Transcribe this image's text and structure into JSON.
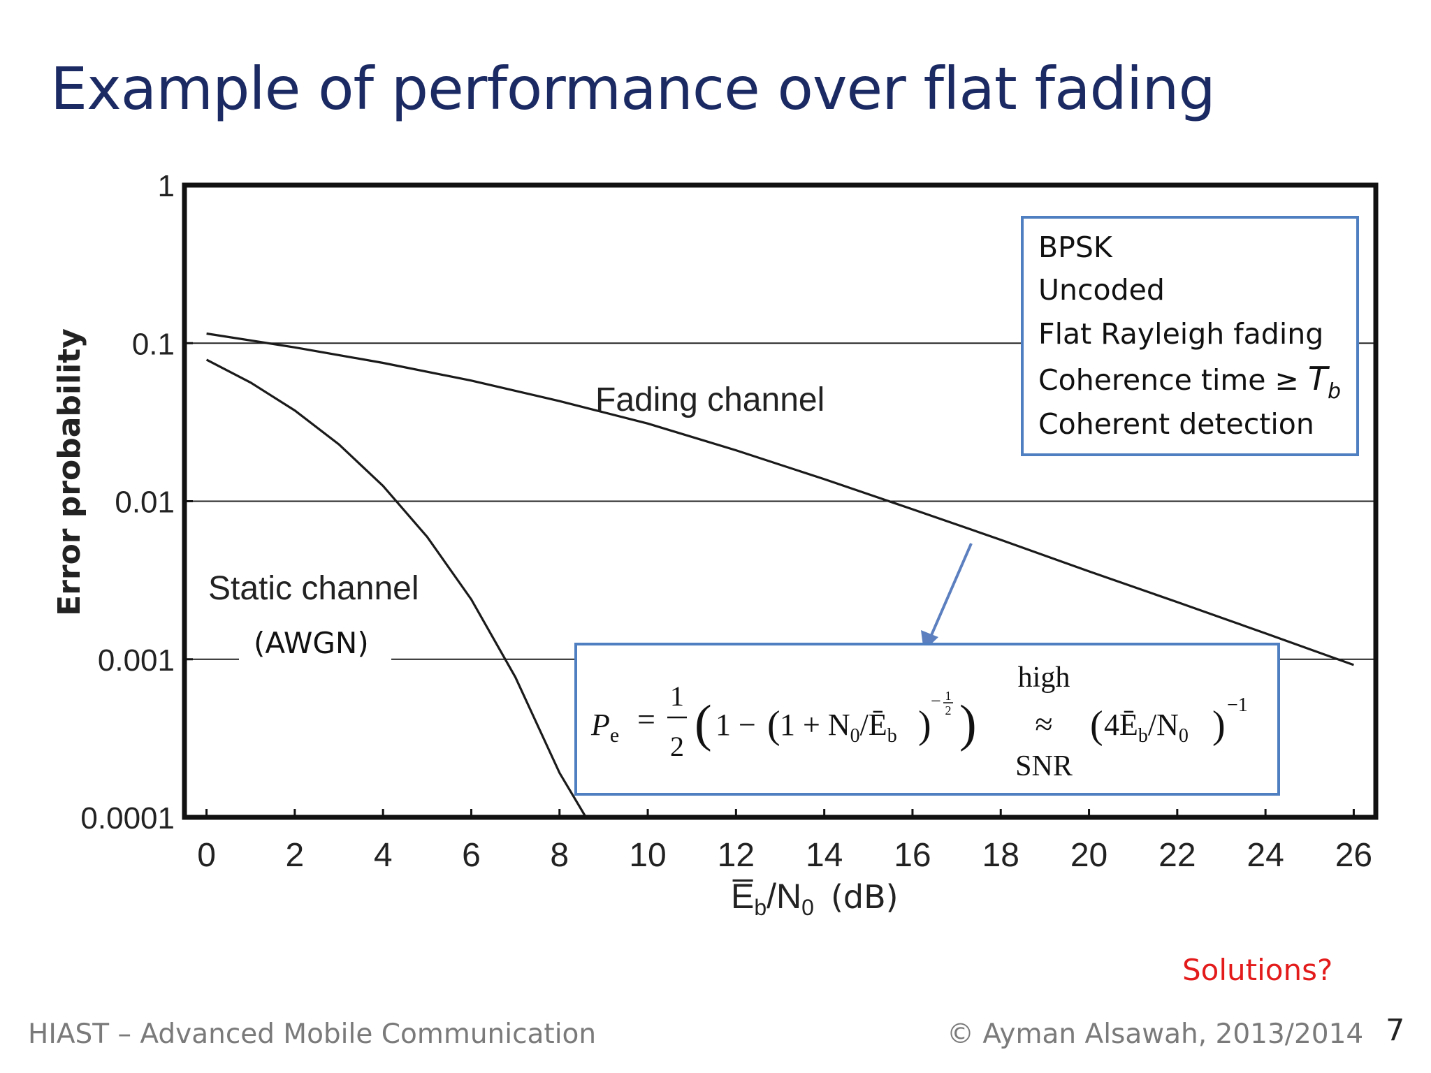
{
  "slide": {
    "title": "Example of performance over flat fading",
    "solutions_note": "Solutions?",
    "footer_left": "HIAST  – Advanced Mobile Communication",
    "footer_right": "© Ayman Alsawah, 2013/2014",
    "page_number": "7"
  },
  "chart_data": {
    "type": "line",
    "title": "",
    "xlabel": "E̅b/N0 (dB)",
    "xlabel_main": "E̅",
    "xlabel_sub1": "b",
    "xlabel_mid": "/N",
    "xlabel_sub2": "0",
    "xlabel_unit": "(dB)",
    "ylabel": "Error probability",
    "y_scale": "log",
    "xlim": [
      -0.5,
      26.5
    ],
    "ylim": [
      0.0001,
      1
    ],
    "x_ticks": [
      0,
      2,
      4,
      6,
      8,
      10,
      12,
      14,
      16,
      18,
      20,
      22,
      24,
      26
    ],
    "x_tick_labels": [
      "0",
      "2",
      "4",
      "6",
      "8",
      "10",
      "12",
      "14",
      "16",
      "18",
      "20",
      "22",
      "24",
      "26"
    ],
    "y_ticks": [
      0.0001,
      0.001,
      0.01,
      0.1,
      1
    ],
    "y_tick_labels": [
      "0.0001",
      "0.001",
      "0.01",
      "0.1",
      "1"
    ],
    "grid": "horizontal lines at 0.001, 0.01, 0.1",
    "series": [
      {
        "label": "Fading channel",
        "x": [
          0,
          2,
          4,
          6,
          8,
          10,
          12,
          14,
          16,
          18,
          20,
          22,
          24,
          26
        ],
        "y": [
          0.115,
          0.094,
          0.075,
          0.058,
          0.043,
          0.031,
          0.021,
          0.0138,
          0.0089,
          0.0057,
          0.0036,
          0.0023,
          0.00146,
          0.00092
        ]
      },
      {
        "label": "Static channel",
        "label_extra": "(AWGN)",
        "x": [
          0,
          1,
          2,
          3,
          4,
          5,
          6,
          7,
          8,
          8.6
        ],
        "y": [
          0.0786,
          0.0563,
          0.0375,
          0.0229,
          0.0125,
          0.00595,
          0.00239,
          0.00077,
          0.000191,
          0.0001
        ]
      }
    ],
    "info_box": {
      "lines": [
        "BPSK",
        "Uncoded",
        "Flat Rayleigh fading"
      ],
      "coherence_prefix": "Coherence time ≥ ",
      "coherence_symbol": "T",
      "coherence_sub": "b",
      "last_line": "Coherent detection"
    },
    "formula_box": {
      "lhs": "P",
      "lhs_sub": "e",
      "equals": "=",
      "half_num": "1",
      "half_den": "2",
      "open_paren": "(",
      "one": "1 −",
      "inner_open": "(",
      "inner": "1 + N",
      "inner_sub0": "0",
      "inner_slash": "/Ē",
      "inner_subb": "b",
      "inner_close": ")",
      "exp_minus": "−",
      "exp_num": "1",
      "exp_den": "2",
      "close_paren": ")",
      "approx_top": "high",
      "approx": "≈",
      "approx_bottom": "SNR",
      "rhs_open": "(",
      "rhs": "4Ē",
      "rhs_subb": "b",
      "rhs_slash": "/N",
      "rhs_sub0": "0",
      "rhs_close": ")",
      "rhs_exp": "−1"
    }
  }
}
